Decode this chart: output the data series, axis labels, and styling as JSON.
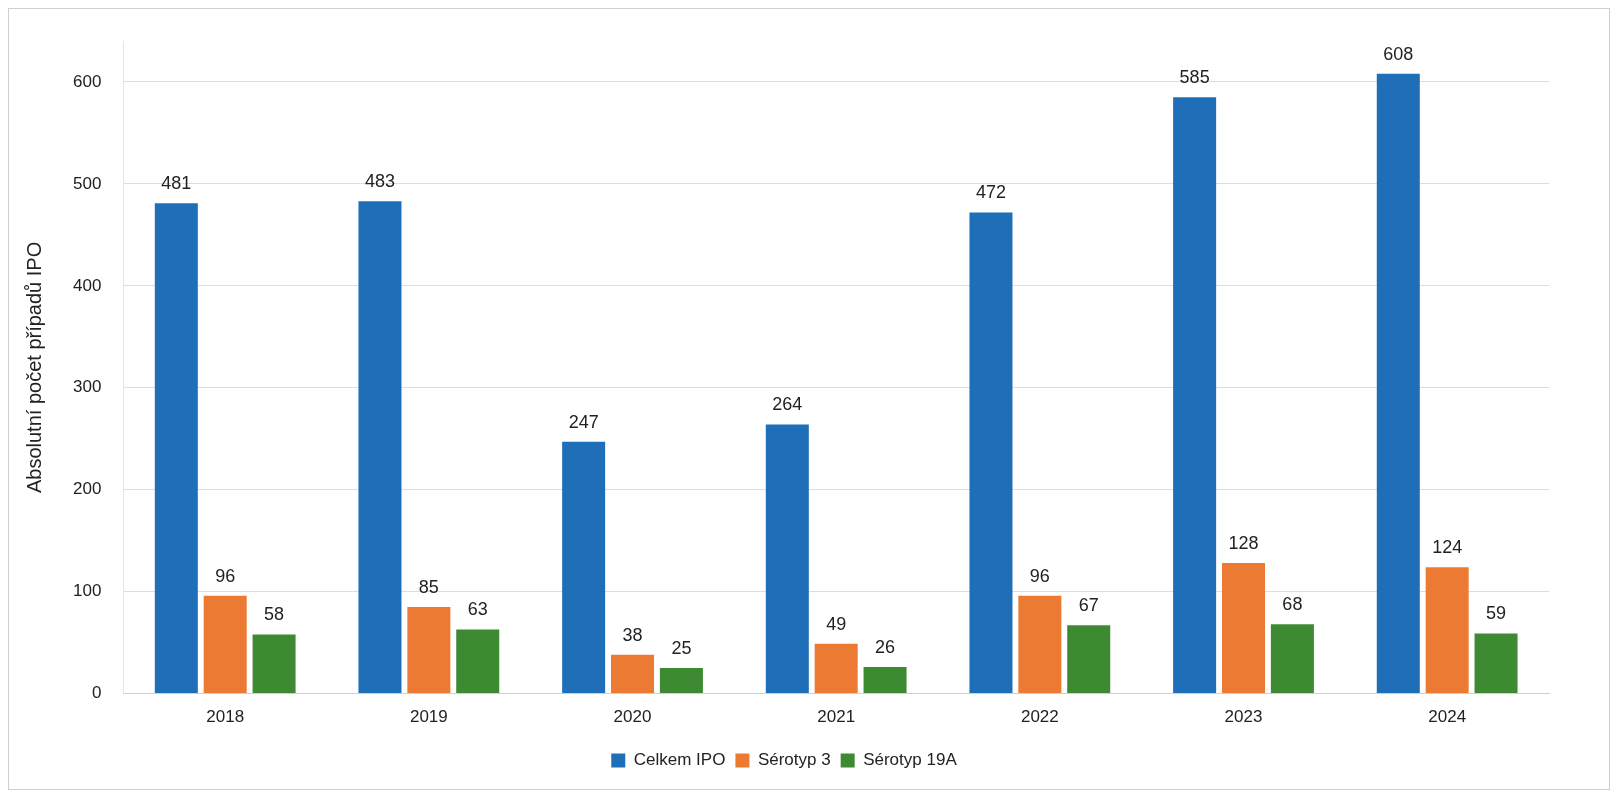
{
  "chart_data": {
    "type": "bar",
    "ylabel": "Absolutní počet případů IPO",
    "categories": [
      "2018",
      "2019",
      "2020",
      "2021",
      "2022",
      "2023",
      "2024"
    ],
    "series": [
      {
        "name": "Celkem IPO",
        "color": "#1f6eb8",
        "values": [
          481,
          483,
          247,
          264,
          472,
          585,
          608
        ]
      },
      {
        "name": "Sérotyp 3",
        "color": "#ec7a33",
        "values": [
          96,
          85,
          38,
          49,
          96,
          128,
          124
        ]
      },
      {
        "name": "Sérotyp 19A",
        "color": "#3e8a33",
        "values": [
          58,
          63,
          25,
          26,
          67,
          68,
          59
        ]
      }
    ],
    "ylim": [
      0,
      640
    ],
    "yticks": [
      0,
      100,
      200,
      300,
      400,
      500,
      600
    ],
    "grid": "y",
    "legend": "bottom",
    "data_labels": true
  }
}
